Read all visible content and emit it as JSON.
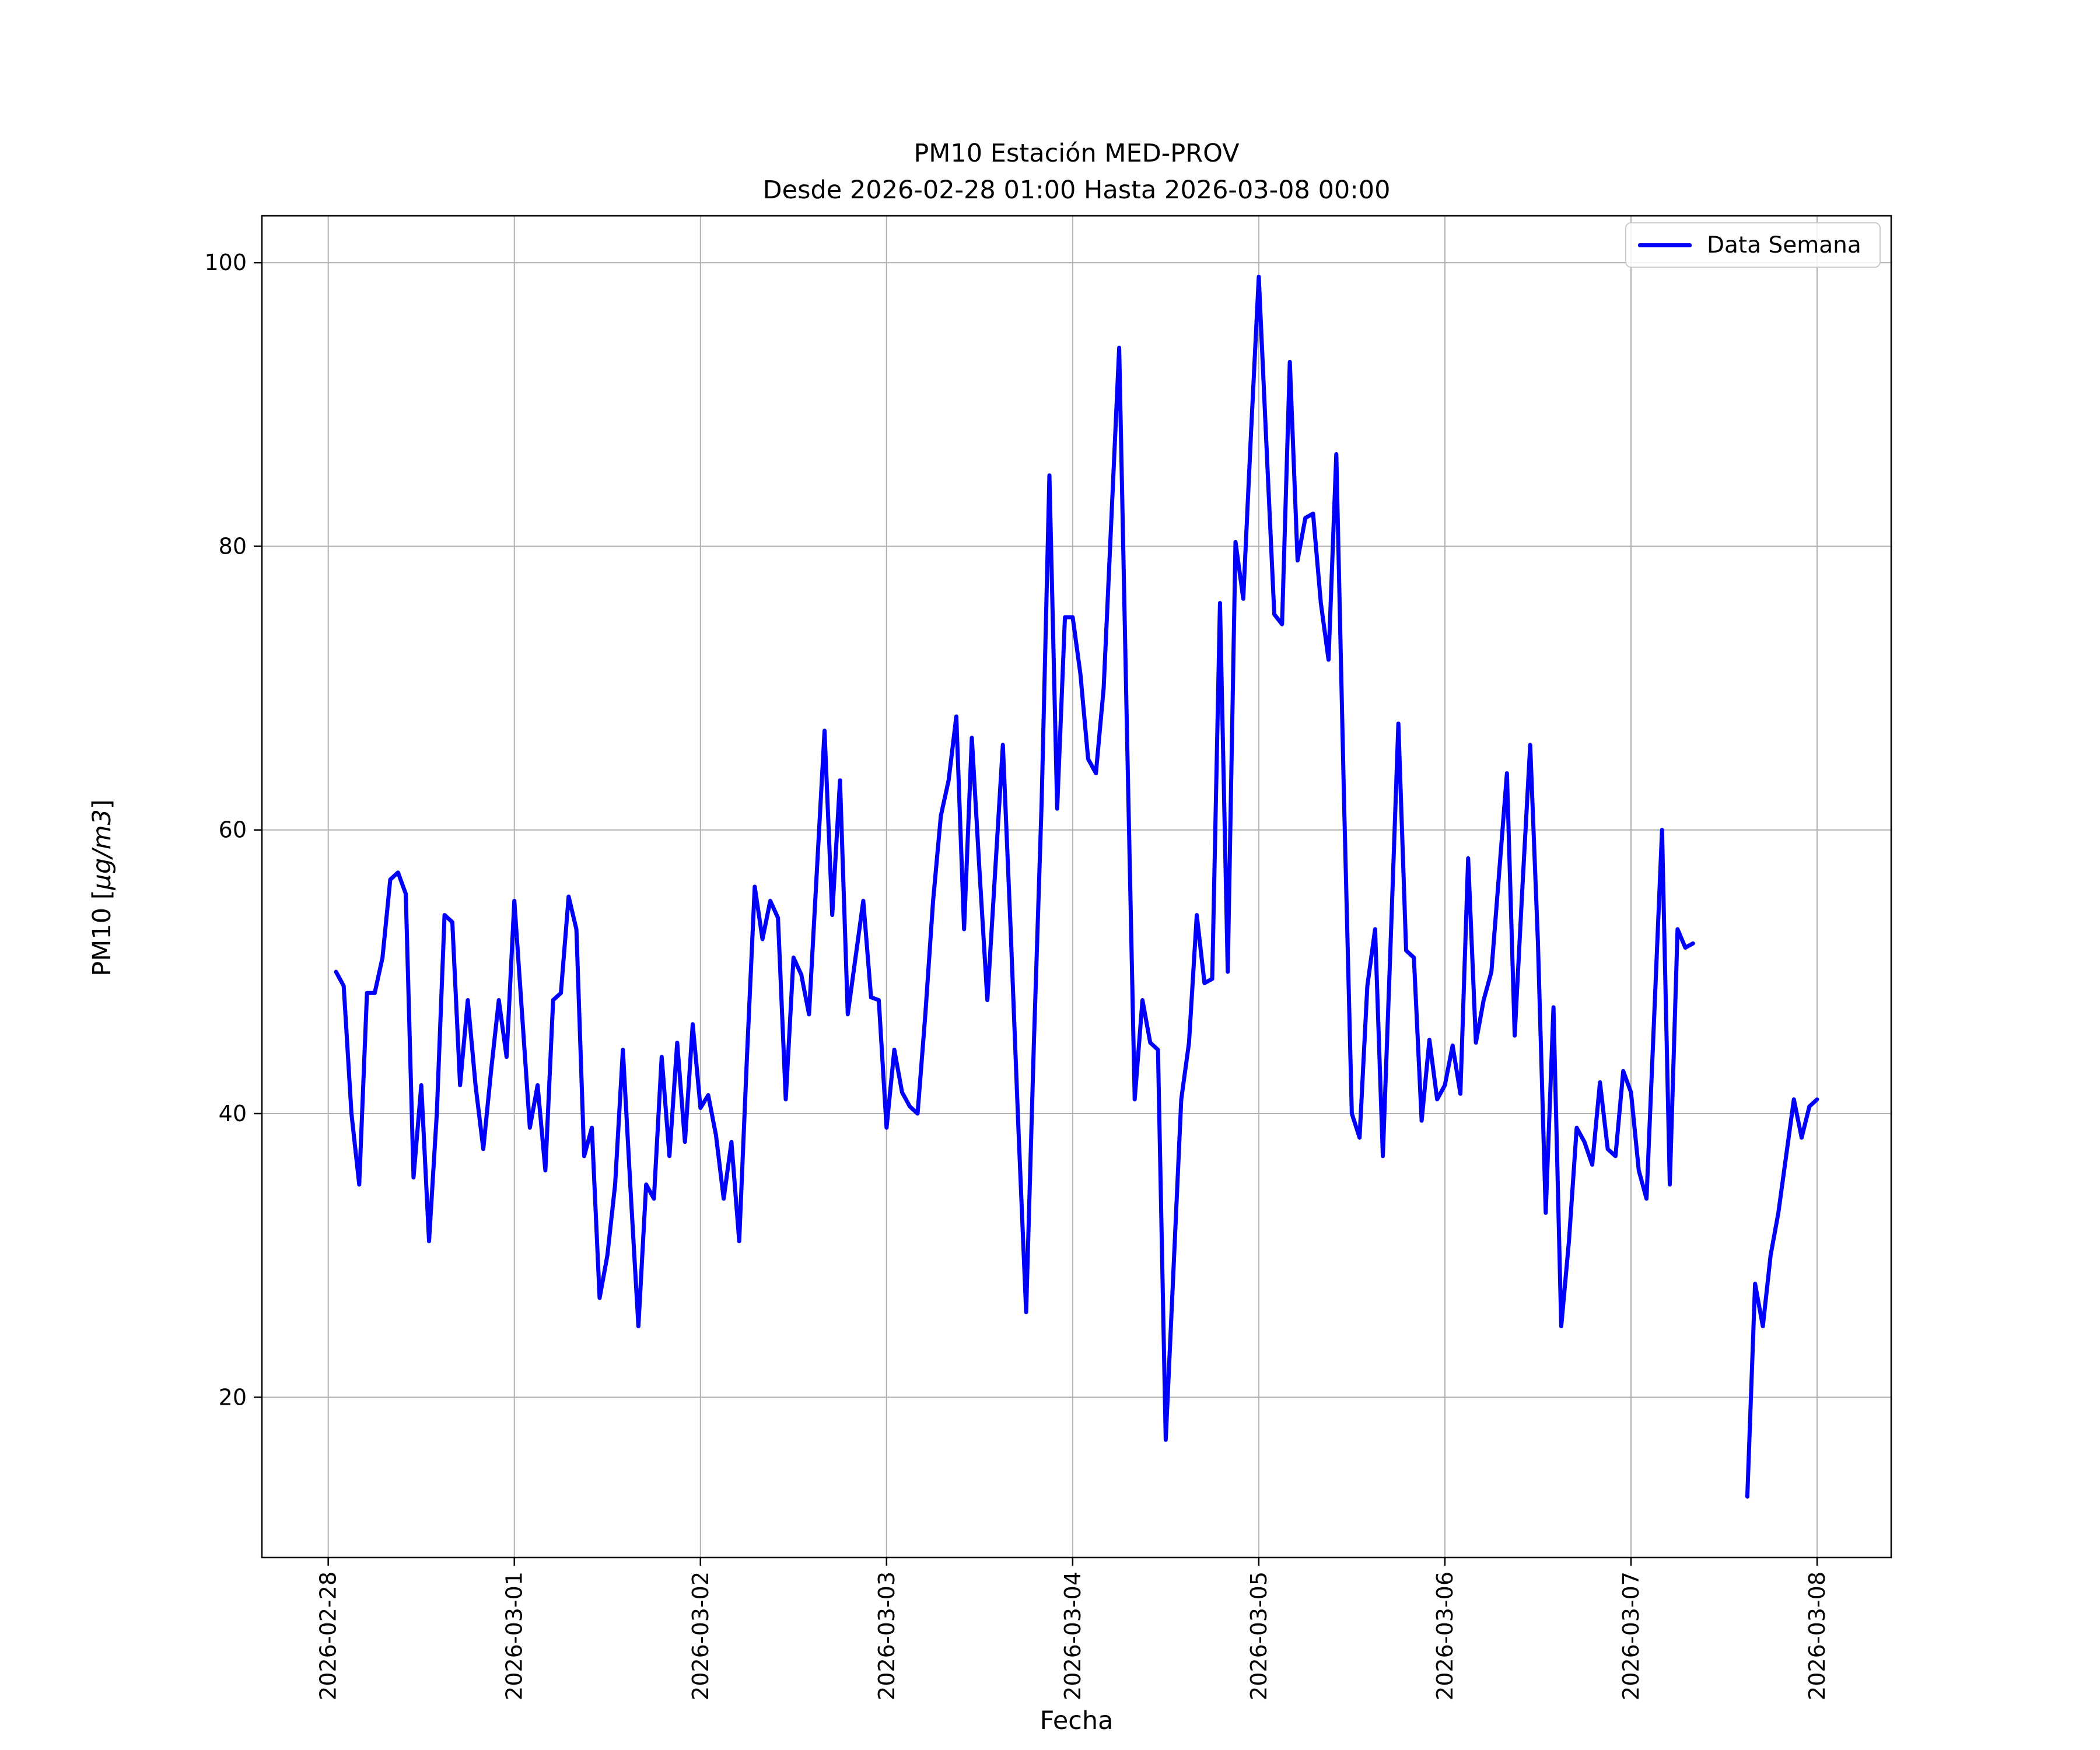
{
  "title": {
    "line1": "PM10 Estación MED-PROV",
    "line2": "Desde 2026-02-28 01:00 Hasta 2026-03-08 00:00"
  },
  "axes": {
    "xlabel": "Fecha",
    "ylabel_prefix": "PM10 [",
    "ylabel_math": "μg/m3",
    "ylabel_suffix": "]"
  },
  "legend": {
    "label": "Data Semana",
    "line_color": "#0000ff"
  },
  "chart_data": {
    "type": "line",
    "title": "PM10 Estación MED-PROV — Desde 2026-02-28 01:00 Hasta 2026-03-08 00:00",
    "xlabel": "Fecha",
    "ylabel": "PM10 [μg/m3]",
    "grid": true,
    "grid_color": "#b0b0b0",
    "background": "#ffffff",
    "legend_position": "upper right",
    "x_tick_labels": [
      "2026-02-28",
      "2026-03-01",
      "2026-03-02",
      "2026-03-03",
      "2026-03-04",
      "2026-03-05",
      "2026-03-06",
      "2026-03-07",
      "2026-03-08"
    ],
    "x_tick_hours": [
      0,
      24,
      48,
      72,
      96,
      120,
      144,
      168,
      192
    ],
    "y_ticks": [
      20,
      40,
      60,
      80,
      100
    ],
    "ylim": [
      8.7,
      103.3
    ],
    "xlim_hours": [
      -8.55,
      201.55
    ],
    "series": [
      {
        "name": "Data Semana",
        "color": "#0000ff",
        "start": "2026-02-28 01:00",
        "start_hour": 1,
        "interval_hours": 1,
        "values": [
          50,
          49,
          40,
          35,
          48.5,
          48.5,
          51,
          56.5,
          57,
          55.5,
          35.5,
          42,
          31,
          40,
          54,
          53.5,
          42,
          48,
          42,
          37.5,
          43,
          48,
          44,
          55,
          47,
          39,
          42,
          36,
          48,
          48.5,
          55.3,
          53,
          37,
          39,
          27,
          30,
          35,
          44.5,
          34.5,
          25,
          35,
          34,
          44,
          37,
          45,
          38,
          46.3,
          40.4,
          41.3,
          38.5,
          34,
          38,
          31,
          44,
          56,
          52.3,
          55,
          53.8,
          41,
          51,
          49.8,
          47,
          57,
          67,
          54,
          63.5,
          47,
          51,
          55,
          48.2,
          48,
          39,
          44.5,
          41.5,
          40.5,
          40,
          47,
          55,
          61,
          63.5,
          68,
          53,
          66.5,
          57,
          48,
          57,
          66,
          53,
          39,
          26,
          45,
          62,
          85,
          61.5,
          75,
          75,
          71,
          65,
          64,
          70,
          82,
          94,
          67,
          41,
          48,
          45,
          44.5,
          17,
          29,
          41,
          45,
          54,
          49.2,
          49.5,
          76,
          50,
          80.3,
          76.3,
          88,
          99,
          87,
          75.2,
          74.5,
          93,
          79,
          82,
          82.3,
          76,
          72,
          86.5,
          62,
          40,
          38.3,
          49,
          53,
          37,
          52,
          67.5,
          51.5,
          51,
          39.5,
          45.2,
          41,
          42,
          44.8,
          41.4,
          58,
          45,
          48,
          50,
          57,
          64,
          45.5,
          56,
          66,
          52,
          33,
          47.5,
          25,
          31,
          39,
          38,
          36.4,
          42.2,
          37.5,
          37,
          43,
          41.5,
          36,
          34,
          47,
          60,
          35,
          53,
          51.7,
          52,
          null,
          null,
          null,
          null,
          null,
          null,
          13,
          28,
          25,
          30,
          33,
          37,
          41,
          38.3,
          40.5,
          41
        ]
      }
    ]
  }
}
